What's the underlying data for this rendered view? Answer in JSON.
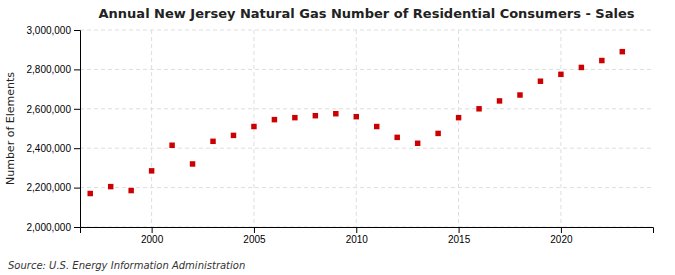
{
  "chart_data": {
    "type": "scatter",
    "title": "Annual New Jersey Natural Gas Number of Residential Consumers - Sales",
    "ylabel": "Number of Elements",
    "annotation": "Source: U.S. Energy Information Administration",
    "color": "#cc0000",
    "marker": "square",
    "grid": true,
    "x": [
      1997,
      1998,
      1999,
      2000,
      2001,
      2002,
      2003,
      2004,
      2005,
      2006,
      2007,
      2008,
      2009,
      2010,
      2011,
      2012,
      2013,
      2014,
      2015,
      2016,
      2017,
      2018,
      2019,
      2020,
      2021,
      2022,
      2023
    ],
    "values": [
      2170000,
      2205000,
      2185000,
      2285000,
      2415000,
      2320000,
      2435000,
      2465000,
      2510000,
      2545000,
      2555000,
      2565000,
      2575000,
      2560000,
      2510000,
      2455000,
      2425000,
      2475000,
      2555000,
      2600000,
      2640000,
      2670000,
      2740000,
      2775000,
      2810000,
      2845000,
      2890000
    ],
    "xlim": [
      1996.5,
      2024.5
    ],
    "xticks": [
      2000,
      2005,
      2010,
      2015,
      2020
    ],
    "ylim": [
      2000000,
      3000000
    ],
    "yticks": [
      {
        "value": 2000000,
        "label": "2,000,000"
      },
      {
        "value": 2200000,
        "label": "2,200,000"
      },
      {
        "value": 2400000,
        "label": "2,400,000"
      },
      {
        "value": 2600000,
        "label": "2,600,000"
      },
      {
        "value": 2800000,
        "label": "2,800,000"
      },
      {
        "value": 3000000,
        "label": "3,000,000"
      }
    ]
  }
}
